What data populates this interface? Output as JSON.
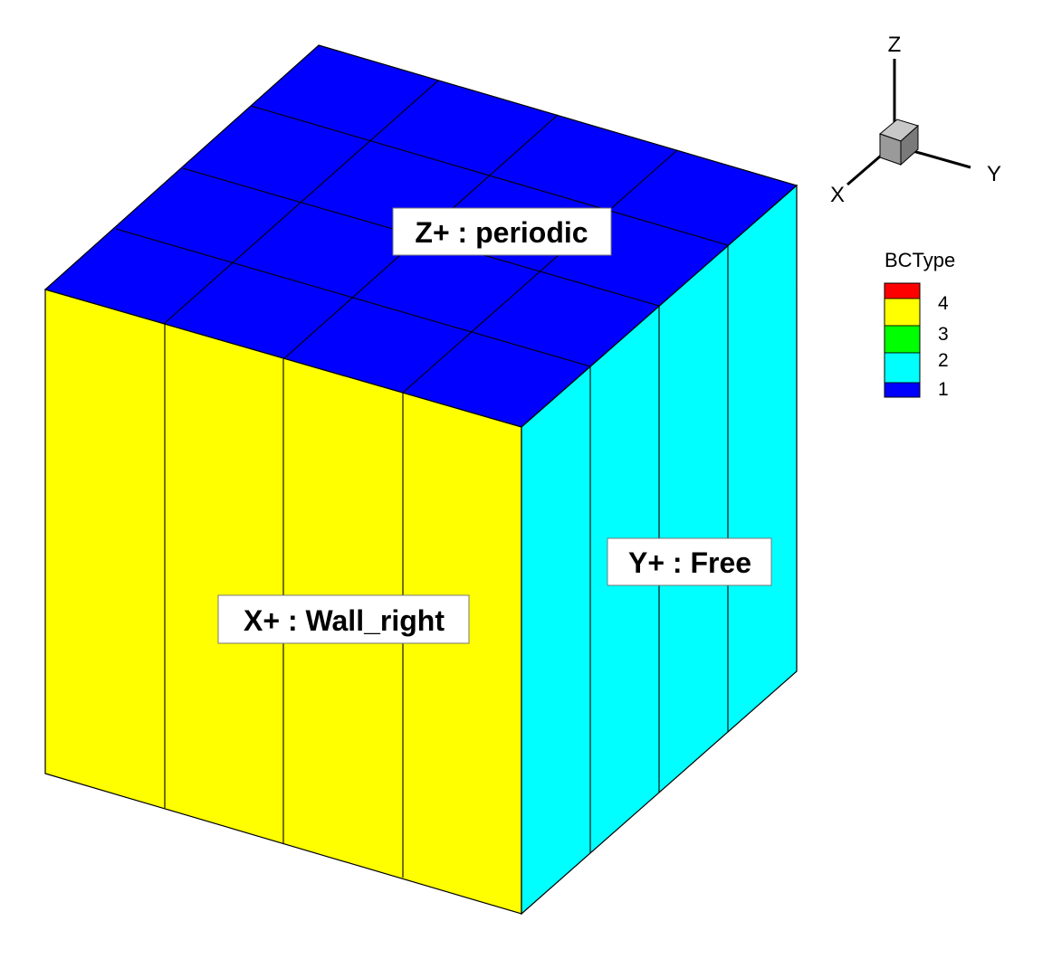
{
  "labels": {
    "top": "Z+ : periodic",
    "left": "X+ : Wall_right",
    "right": "Y+ : Free"
  },
  "axes": {
    "x": "X",
    "y": "Y",
    "z": "Z"
  },
  "legend": {
    "title": "BCType",
    "entries": [
      {
        "value": "4",
        "color": "#ff0000"
      },
      {
        "value": "3",
        "color": "#ffff00"
      },
      {
        "value": "2",
        "color": "#00ff00"
      },
      {
        "value": "1",
        "color": "#00ffff"
      },
      {
        "value": "1",
        "color": "#0000ff"
      }
    ],
    "tick_labels": [
      "4",
      "3",
      "2",
      "1"
    ]
  },
  "colors": {
    "top_face": "#0000ff",
    "left_face": "#ffff00",
    "right_face": "#00ffff",
    "axis_cube": "#9a9a9a"
  }
}
